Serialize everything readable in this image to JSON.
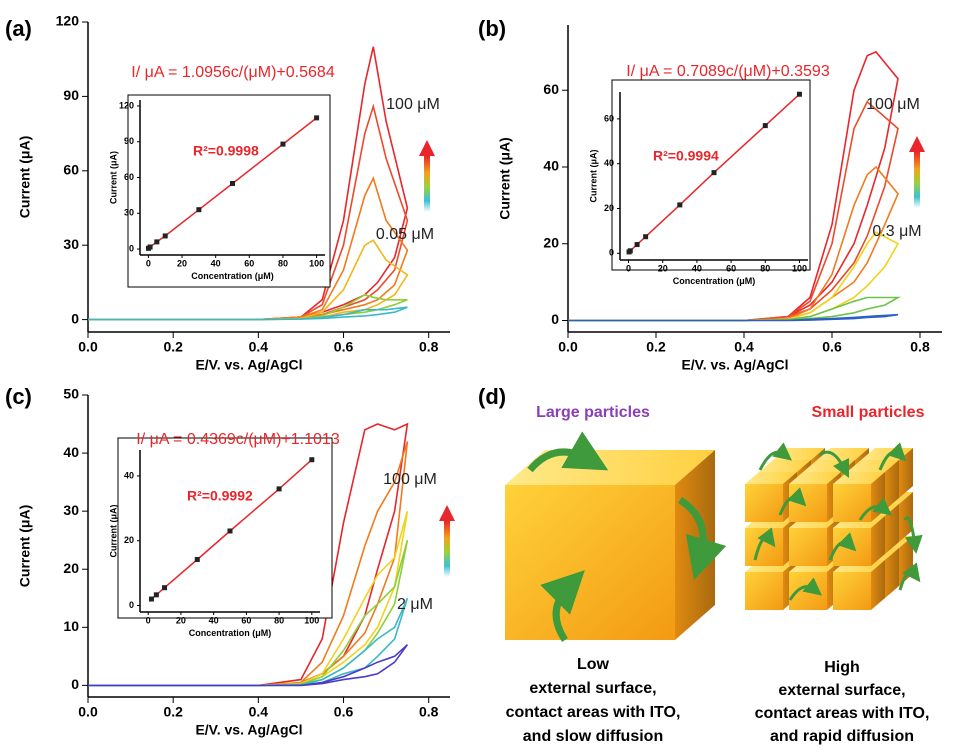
{
  "chart_data": [
    {
      "type": "line",
      "label": "(a)",
      "xlabel": "E/V. vs. Ag/AgCl",
      "ylabel": "Current (μA)",
      "annotations": [
        "I/ μA = 1.0956c/(μM)+0.5684",
        "100 μM",
        "0.05 μM"
      ],
      "xlim": [
        0,
        0.85
      ],
      "ylim": [
        -5,
        120
      ],
      "xticks": [
        {
          "value": 0,
          "label": "0.0"
        },
        0.2,
        0.4,
        0.6,
        0.8
      ],
      "yticks": [
        0,
        30,
        60,
        90,
        120
      ],
      "x": [
        0,
        0.4,
        0.5,
        0.55,
        0.6,
        0.65,
        0.67,
        0.7,
        0.75,
        0.72,
        0.68,
        0.65,
        0.6,
        0.55,
        0.5
      ],
      "series": [
        {
          "color": "#e8262b",
          "values": [
            0,
            0,
            1,
            8,
            40,
            95,
            110,
            80,
            45,
            25,
            15,
            10,
            6,
            3,
            1
          ]
        },
        {
          "color": "#ec4a2a",
          "values": [
            0,
            0,
            1,
            6,
            30,
            75,
            86,
            65,
            40,
            20,
            12,
            8,
            5,
            2,
            1
          ]
        },
        {
          "color": "#f07a1c",
          "values": [
            0,
            0,
            1,
            4,
            20,
            50,
            57,
            40,
            28,
            14,
            8,
            6,
            4,
            2,
            0.5
          ]
        },
        {
          "color": "#f2b51a",
          "values": [
            0,
            0,
            0.5,
            3,
            12,
            30,
            32,
            24,
            18,
            10,
            6,
            4,
            3,
            1,
            0.5
          ]
        },
        {
          "color": "#8ccf3a",
          "values": [
            0,
            0,
            0.3,
            1.5,
            5,
            10,
            9,
            8,
            8,
            6,
            4,
            3,
            2,
            1,
            0.3
          ]
        },
        {
          "color": "#3cb8c8",
          "values": [
            0,
            0,
            0.2,
            0.8,
            2,
            4,
            4,
            4,
            5,
            3,
            2,
            1.5,
            1,
            0.5,
            0.2
          ]
        }
      ],
      "inset": {
        "type": "scatter",
        "xlabel": "Concentration (μM)",
        "ylabel": "Current (μA)",
        "annotation": "R²=0.9998",
        "xlim": [
          -5,
          105
        ],
        "ylim": [
          -5,
          125
        ],
        "xticks": [
          0,
          20,
          40,
          60,
          80,
          100
        ],
        "yticks": [
          0,
          30,
          60,
          90,
          120
        ],
        "color": "#e8262b",
        "x": [
          0.05,
          1,
          5,
          10,
          30,
          50,
          80,
          100
        ],
        "values": [
          0.6,
          1.7,
          6,
          11,
          33,
          55,
          88,
          110
        ]
      }
    },
    {
      "type": "line",
      "label": "(b)",
      "xlabel": "E/V. vs. Ag/AgCl",
      "ylabel": "Current (μA)",
      "annotations": [
        "I/ μA = 0.7089c/(μM)+0.3593",
        "100 μM",
        "0.3 μM"
      ],
      "xlim": [
        0,
        0.85
      ],
      "ylim": [
        -3,
        77
      ],
      "xticks": [
        {
          "value": 0,
          "label": "0.0"
        },
        0.2,
        0.4,
        0.6,
        0.8
      ],
      "yticks": [
        0,
        20,
        40,
        60
      ],
      "x": [
        0,
        0.4,
        0.5,
        0.55,
        0.6,
        0.65,
        0.68,
        0.7,
        0.75,
        0.72,
        0.68,
        0.65,
        0.6,
        0.55,
        0.5
      ],
      "series": [
        {
          "color": "#e8262b",
          "values": [
            0,
            0,
            1,
            6,
            25,
            60,
            69,
            70,
            63,
            45,
            30,
            20,
            10,
            4,
            1
          ]
        },
        {
          "color": "#ec4a2a",
          "values": [
            0,
            0,
            1,
            5,
            20,
            50,
            57,
            55,
            50,
            35,
            22,
            15,
            8,
            3,
            1
          ]
        },
        {
          "color": "#f07a1c",
          "values": [
            0,
            0,
            0.5,
            3,
            12,
            30,
            38,
            40,
            33,
            25,
            15,
            10,
            6,
            2,
            0.5
          ]
        },
        {
          "color": "#f2d21a",
          "values": [
            0,
            0,
            0.3,
            2,
            6,
            14,
            20,
            23,
            20,
            14,
            9,
            6,
            3,
            1,
            0.3
          ]
        },
        {
          "color": "#6cc24a",
          "values": [
            0,
            0,
            0.2,
            1,
            3,
            5,
            6,
            6,
            6,
            4,
            3,
            2,
            1,
            0.5,
            0.2
          ]
        },
        {
          "color": "#2b5fc8",
          "values": [
            0,
            0,
            0,
            0.3,
            0.5,
            0.8,
            1,
            1.2,
            1.5,
            1,
            0.8,
            0.5,
            0.3,
            0.1,
            0
          ]
        }
      ],
      "inset": {
        "type": "scatter",
        "xlabel": "Concentration (μM)",
        "ylabel": "Current (μA)",
        "annotation": "R²=0.9994",
        "xlim": [
          -5,
          105
        ],
        "ylim": [
          -3,
          72
        ],
        "xticks": [
          0,
          20,
          40,
          60,
          80,
          100
        ],
        "yticks": [
          0,
          20,
          40,
          60
        ],
        "color": "#e8262b",
        "x": [
          0.3,
          1,
          5,
          10,
          30,
          50,
          80,
          100
        ],
        "values": [
          0.6,
          1.1,
          3.9,
          7.4,
          21.6,
          36,
          57,
          71
        ]
      }
    },
    {
      "type": "line",
      "label": "(c)",
      "xlabel": "E/V. vs. Ag/AgCl",
      "ylabel": "Current (μA)",
      "annotations": [
        "I/ μA = 0.4369c/(μM)+1.1013",
        "100 μM",
        "2 μM"
      ],
      "xlim": [
        0,
        0.85
      ],
      "ylim": [
        -2,
        50
      ],
      "xticks": [
        {
          "value": 0,
          "label": "0.0"
        },
        0.2,
        0.4,
        0.6,
        0.8
      ],
      "yticks": [
        0,
        10,
        20,
        30,
        40,
        50
      ],
      "x": [
        0,
        0.4,
        0.5,
        0.55,
        0.6,
        0.65,
        0.68,
        0.72,
        0.75,
        0.72,
        0.68,
        0.65,
        0.6,
        0.55,
        0.5
      ],
      "series": [
        {
          "color": "#e8262b",
          "values": [
            0,
            0,
            1,
            8,
            28,
            44,
            45,
            44,
            45,
            30,
            20,
            12,
            5,
            2,
            0.5
          ]
        },
        {
          "color": "#f07a1c",
          "values": [
            0,
            0,
            0.5,
            4,
            12,
            24,
            30,
            35,
            42,
            22,
            14,
            9,
            5,
            2,
            0.5
          ]
        },
        {
          "color": "#f2d21a",
          "values": [
            0,
            0,
            0.3,
            2,
            8,
            15,
            19,
            22,
            30,
            17,
            10,
            7,
            4,
            1.5,
            0.3
          ]
        },
        {
          "color": "#8ccf3a",
          "values": [
            0,
            0,
            0.2,
            1.5,
            6,
            12,
            14,
            17,
            25,
            14,
            9,
            6,
            3,
            1,
            0.2
          ]
        },
        {
          "color": "#3cb8c8",
          "values": [
            0,
            0,
            0.1,
            1,
            3,
            6,
            8,
            10,
            15,
            8,
            5,
            3,
            2,
            0.5,
            0.1
          ]
        },
        {
          "color": "#4a3cc8",
          "values": [
            0,
            0,
            0,
            0.5,
            1.5,
            3,
            4,
            5,
            7,
            4,
            2,
            1.5,
            1,
            0.3,
            0
          ]
        }
      ],
      "inset": {
        "type": "scatter",
        "xlabel": "Concentration (μM)",
        "ylabel": "Current (μA)",
        "annotation": "R²=0.9992",
        "xlim": [
          -5,
          105
        ],
        "ylim": [
          -2,
          48
        ],
        "xticks": [
          0,
          20,
          40,
          60,
          80,
          100
        ],
        "yticks": [
          0,
          20,
          40
        ],
        "color": "#e8262b",
        "x": [
          2,
          5,
          10,
          30,
          50,
          80,
          100
        ],
        "values": [
          2,
          3.3,
          5.5,
          14.2,
          23,
          36,
          45
        ]
      }
    }
  ],
  "diagram": {
    "label": "(d)",
    "left": {
      "title": "Large particles",
      "caption": [
        "Low",
        "external surface,",
        "contact areas with ITO,",
        "and slow diffusion"
      ]
    },
    "right": {
      "title": "Small particles",
      "caption": [
        "High",
        "external surface,",
        "contact areas with ITO,",
        "and rapid diffusion"
      ]
    }
  }
}
